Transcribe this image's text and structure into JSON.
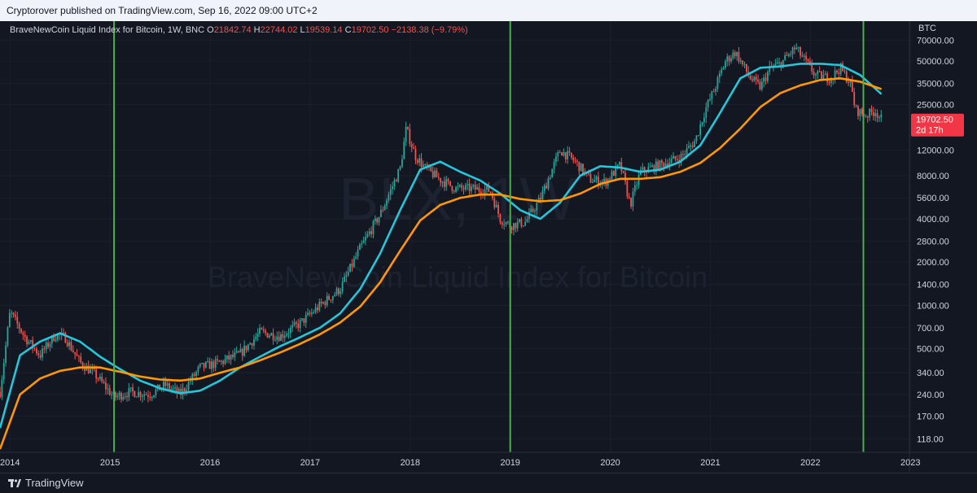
{
  "header": {
    "published": "Cryptorover published on TradingView.com, Sep 16, 2022 09:00 UTC+2"
  },
  "legend": {
    "symbol": "BraveNewCoin Liquid Index for Bitcoin, 1W, BNC",
    "o_label": "O",
    "o": "21842.74",
    "h_label": "H",
    "h": "22744.02",
    "l_label": "L",
    "l": "19539.14",
    "c_label": "C",
    "c": "19702.50",
    "change": "−2138.38 (−9.79%)"
  },
  "watermark": {
    "ticker": "BLX, 1W",
    "name": "BraveNewCoin Liquid Index for Bitcoin"
  },
  "price_axis": {
    "currency": "BTC",
    "last_price": "19702.50",
    "countdown": "2d 17h"
  },
  "footer": {
    "brand": "TradingView"
  },
  "colors": {
    "background": "#131722",
    "up": "#26a69a",
    "down": "#ef5350",
    "fast_ma": "#26c6da",
    "slow_ma": "#ff9800",
    "vline": "#4caf50",
    "price_badge": "#f23645"
  },
  "chart_data": {
    "type": "line",
    "scale": "log",
    "x_unit": "year",
    "xlim": [
      2013.9,
      2022.99
    ],
    "ylim": [
      95,
      95000
    ],
    "x_tick_labels": [
      "2014",
      "2015",
      "2016",
      "2017",
      "2018",
      "2019",
      "2020",
      "2021",
      "2022",
      "2023"
    ],
    "x_tick_values": [
      2014,
      2015,
      2016,
      2017,
      2018,
      2019,
      2020,
      2021,
      2022,
      2023
    ],
    "y_tick_labels": [
      "70000.00",
      "50000.00",
      "35000.00",
      "25000.00",
      "12000.00",
      "8000.00",
      "5600.00",
      "4000.00",
      "2800.00",
      "2000.00",
      "1400.00",
      "1000.00",
      "700.00",
      "500.00",
      "340.00",
      "240.00",
      "170.00",
      "118.00"
    ],
    "y_tick_values": [
      70000,
      50000,
      35000,
      25000,
      12000,
      8000,
      5600,
      4000,
      2800,
      2000,
      1400,
      1000,
      700,
      500,
      340,
      240,
      170,
      118
    ],
    "vertical_lines_x": [
      2015.04,
      2019.0,
      2022.53
    ],
    "series": [
      {
        "role": "price",
        "x": [
          2013.9,
          2014.0,
          2014.15,
          2014.3,
          2014.45,
          2014.55,
          2014.7,
          2014.85,
          2015.04,
          2015.2,
          2015.4,
          2015.55,
          2015.7,
          2015.9,
          2016.1,
          2016.3,
          2016.5,
          2016.7,
          2016.9,
          2017.1,
          2017.3,
          2017.5,
          2017.7,
          2017.9,
          2017.96,
          2018.05,
          2018.15,
          2018.3,
          2018.45,
          2018.6,
          2018.8,
          2018.9,
          2019.0,
          2019.15,
          2019.3,
          2019.45,
          2019.5,
          2019.65,
          2019.8,
          2019.95,
          2020.1,
          2020.2,
          2020.3,
          2020.5,
          2020.7,
          2020.85,
          2020.95,
          2021.05,
          2021.15,
          2021.25,
          2021.4,
          2021.5,
          2021.6,
          2021.7,
          2021.85,
          2021.95,
          2022.05,
          2022.2,
          2022.3,
          2022.4,
          2022.45,
          2022.55,
          2022.65,
          2022.71
        ],
        "y": [
          250,
          900,
          600,
          450,
          620,
          600,
          400,
          330,
          230,
          250,
          240,
          280,
          240,
          370,
          400,
          460,
          650,
          610,
          750,
          1000,
          1300,
          2500,
          4300,
          9000,
          17000,
          11000,
          9000,
          7500,
          6500,
          6500,
          6300,
          4000,
          3600,
          3800,
          5500,
          10000,
          12000,
          10000,
          7500,
          7200,
          9500,
          5000,
          8500,
          9500,
          10700,
          14000,
          23000,
          33000,
          50000,
          58000,
          38000,
          33000,
          45000,
          48000,
          62000,
          50000,
          40000,
          38000,
          45000,
          35000,
          23000,
          21000,
          22500,
          19700
        ]
      },
      {
        "role": "fast_ma",
        "x": [
          2013.9,
          2014.1,
          2014.3,
          2014.5,
          2014.7,
          2014.9,
          2015.1,
          2015.3,
          2015.5,
          2015.7,
          2015.9,
          2016.1,
          2016.3,
          2016.5,
          2016.7,
          2016.9,
          2017.1,
          2017.3,
          2017.5,
          2017.7,
          2017.9,
          2018.1,
          2018.3,
          2018.5,
          2018.7,
          2018.9,
          2019.1,
          2019.3,
          2019.5,
          2019.7,
          2019.9,
          2020.1,
          2020.3,
          2020.5,
          2020.7,
          2020.9,
          2021.1,
          2021.3,
          2021.5,
          2021.7,
          2021.9,
          2022.1,
          2022.3,
          2022.5,
          2022.71
        ],
        "y": [
          140,
          450,
          560,
          640,
          560,
          440,
          360,
          300,
          265,
          245,
          255,
          300,
          370,
          440,
          520,
          600,
          700,
          880,
          1300,
          2300,
          4600,
          8800,
          10000,
          8500,
          7400,
          6000,
          4600,
          4000,
          5200,
          8000,
          9300,
          9100,
          8500,
          8800,
          10000,
          13000,
          22000,
          38000,
          45000,
          46000,
          48000,
          48000,
          47000,
          40000,
          29500
        ]
      },
      {
        "role": "slow_ma",
        "x": [
          2013.9,
          2014.1,
          2014.3,
          2014.5,
          2014.7,
          2014.9,
          2015.1,
          2015.3,
          2015.5,
          2015.7,
          2015.9,
          2016.1,
          2016.3,
          2016.5,
          2016.7,
          2016.9,
          2017.1,
          2017.3,
          2017.5,
          2017.7,
          2017.9,
          2018.1,
          2018.3,
          2018.5,
          2018.7,
          2018.9,
          2019.1,
          2019.3,
          2019.5,
          2019.7,
          2019.9,
          2020.1,
          2020.3,
          2020.5,
          2020.7,
          2020.9,
          2021.1,
          2021.3,
          2021.5,
          2021.7,
          2021.9,
          2022.1,
          2022.3,
          2022.5,
          2022.71
        ],
        "y": [
          100,
          240,
          310,
          350,
          370,
          370,
          345,
          320,
          305,
          300,
          310,
          340,
          370,
          415,
          470,
          540,
          630,
          760,
          980,
          1450,
          2400,
          3900,
          5000,
          5600,
          5900,
          5900,
          5500,
          5300,
          5400,
          6000,
          7000,
          7600,
          7600,
          7800,
          8500,
          9800,
          12500,
          17000,
          24000,
          30000,
          34000,
          37000,
          38000,
          36000,
          32000
        ]
      }
    ]
  }
}
